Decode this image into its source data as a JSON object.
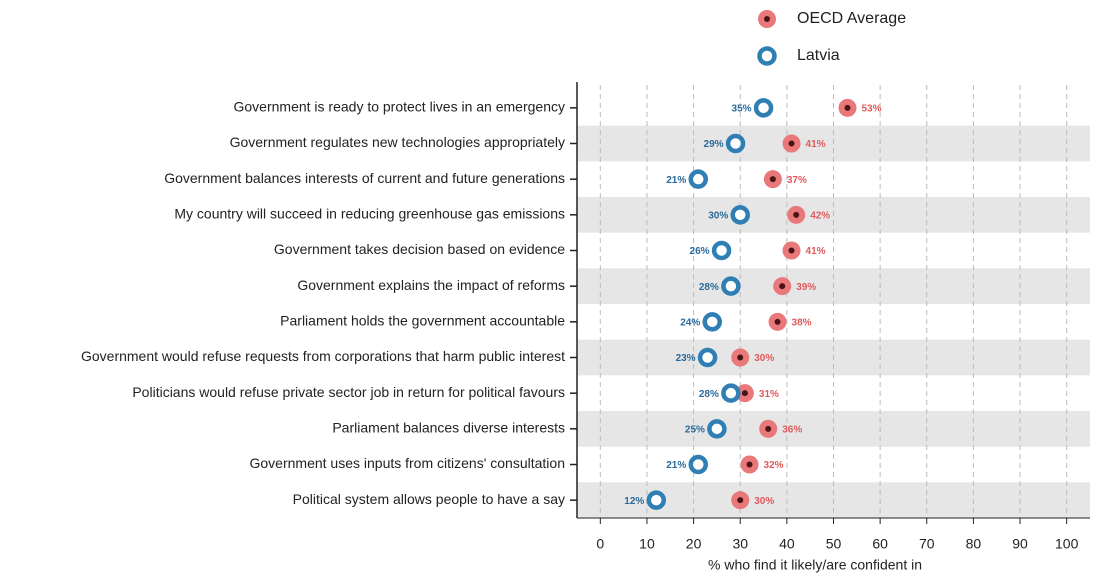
{
  "chart_data": {
    "type": "dot",
    "xlabel": "% who find it likely/are confident in",
    "categories": [
      "Government is ready to protect lives in an emergency",
      "Government regulates new technologies appropriately",
      "Government balances interests of current and future generations",
      "My country will succeed in reducing greenhouse gas emissions",
      "Government takes decision based on evidence",
      "Government explains the impact of reforms",
      "Parliament holds the government accountable",
      "Government would refuse requests from corporations that harm public interest",
      "Politicians would refuse private sector job in return for political favours",
      "Parliament balances diverse interests",
      "Government uses inputs from citizens' consultation",
      "Political system allows people to have a say"
    ],
    "series": [
      {
        "name": "OECD Average",
        "color": "#e8787a",
        "values": [
          53,
          41,
          37,
          42,
          41,
          39,
          38,
          30,
          31,
          36,
          32,
          30
        ],
        "value_labels": [
          "53%",
          "41%",
          "37%",
          "42%",
          "41%",
          "39%",
          "38%",
          "30%",
          "31%",
          "36%",
          "32%",
          "30%"
        ]
      },
      {
        "name": "Latvia",
        "color": "#2f7fb5",
        "values": [
          35,
          29,
          21,
          30,
          26,
          28,
          24,
          23,
          28,
          25,
          21,
          12
        ],
        "value_labels": [
          "35%",
          "29%",
          "21%",
          "30%",
          "26%",
          "28%",
          "24%",
          "23%",
          "28%",
          "25%",
          "21%",
          "12%"
        ]
      }
    ],
    "xlim": [
      -5,
      105
    ],
    "xticks": [
      0,
      10,
      20,
      30,
      40,
      50,
      60,
      70,
      80,
      90,
      100
    ],
    "grid": true
  }
}
